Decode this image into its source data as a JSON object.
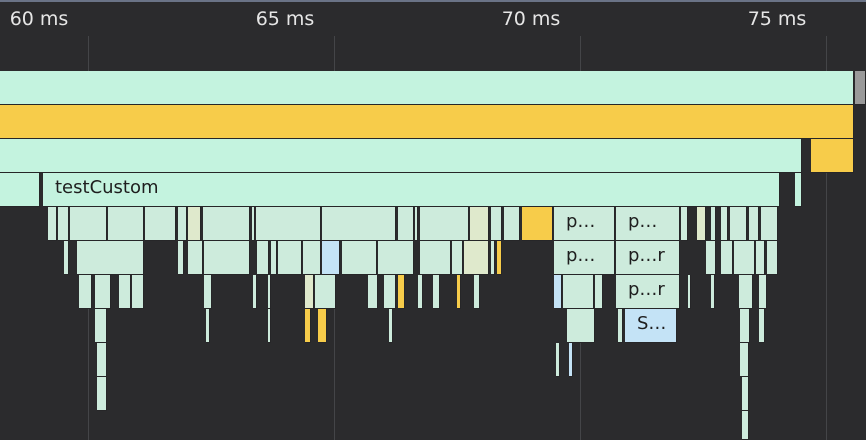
{
  "timeline": {
    "ticks": [
      {
        "label": "60 ms",
        "ms": 60
      },
      {
        "label": "65 ms",
        "ms": 65
      },
      {
        "label": "70 ms",
        "ms": 70
      },
      {
        "label": "75 ms",
        "ms": 75
      }
    ],
    "visible_range_ms": [
      59.1,
      76.8
    ]
  },
  "colors": {
    "background": "#2b2b2d",
    "mint": "#c4f3df",
    "mint_alt": "#cdebdc",
    "yellow": "#f7cc4a",
    "blue": "#c4e3f6",
    "pale": "#dfe9cc",
    "gray": "#9a9a9a",
    "tick_text": "#e6e6e6"
  },
  "frames": [
    {
      "row": 0,
      "start": 59.1,
      "end": 76.56,
      "color": "mint"
    },
    {
      "row": 0,
      "start": 76.58,
      "end": 76.8,
      "color": "gray"
    },
    {
      "row": 1,
      "start": 59.1,
      "end": 76.56,
      "color": "yellow"
    },
    {
      "row": 2,
      "start": 59.1,
      "end": 75.51,
      "color": "mint"
    },
    {
      "row": 2,
      "start": 75.69,
      "end": 76.56,
      "color": "yellow"
    },
    {
      "row": 3,
      "start": 59.1,
      "end": 60.03,
      "color": "mint"
    },
    {
      "row": 3,
      "start": 60.09,
      "end": 75.06,
      "color": "mint",
      "label": "testCustom"
    },
    {
      "row": 3,
      "start": 75.36,
      "end": 75.51,
      "color": "mint"
    },
    {
      "row": 4,
      "start": 60.18,
      "end": 60.36,
      "color": "mint2"
    },
    {
      "row": 4,
      "start": 60.39,
      "end": 60.6,
      "color": "mint2"
    },
    {
      "row": 4,
      "start": 60.63,
      "end": 61.38,
      "color": "mint2"
    },
    {
      "row": 4,
      "start": 61.41,
      "end": 62.13,
      "color": "mint2"
    },
    {
      "row": 4,
      "start": 62.16,
      "end": 62.79,
      "color": "mint2"
    },
    {
      "row": 4,
      "start": 62.82,
      "end": 63.0,
      "color": "mint2"
    },
    {
      "row": 4,
      "start": 63.03,
      "end": 63.3,
      "color": "pale"
    },
    {
      "row": 4,
      "start": 63.33,
      "end": 64.29,
      "color": "mint2"
    },
    {
      "row": 4,
      "start": 64.32,
      "end": 64.38,
      "color": "mint2"
    },
    {
      "row": 4,
      "start": 64.41,
      "end": 65.73,
      "color": "mint2"
    },
    {
      "row": 4,
      "start": 65.76,
      "end": 67.26,
      "color": "mint2"
    },
    {
      "row": 4,
      "start": 67.29,
      "end": 67.62,
      "color": "mint2"
    },
    {
      "row": 4,
      "start": 67.65,
      "end": 67.71,
      "color": "mint2"
    },
    {
      "row": 4,
      "start": 67.74,
      "end": 68.73,
      "color": "mint2"
    },
    {
      "row": 4,
      "start": 68.76,
      "end": 69.15,
      "color": "pale"
    },
    {
      "row": 4,
      "start": 69.18,
      "end": 69.42,
      "color": "mint2"
    },
    {
      "row": 4,
      "start": 69.45,
      "end": 69.78,
      "color": "mint2"
    },
    {
      "row": 4,
      "start": 69.81,
      "end": 70.44,
      "color": "yellow"
    },
    {
      "row": 4,
      "start": 70.47,
      "end": 71.7,
      "color": "mint2",
      "label": "p…"
    },
    {
      "row": 4,
      "start": 71.73,
      "end": 73.02,
      "color": "mint2",
      "label": "p…"
    },
    {
      "row": 4,
      "start": 73.05,
      "end": 73.2,
      "color": "mint2"
    },
    {
      "row": 4,
      "start": 73.38,
      "end": 73.56,
      "color": "pale"
    },
    {
      "row": 4,
      "start": 73.65,
      "end": 73.77,
      "color": "mint2"
    },
    {
      "row": 4,
      "start": 73.86,
      "end": 74.01,
      "color": "mint2"
    },
    {
      "row": 4,
      "start": 74.04,
      "end": 74.4,
      "color": "mint2"
    },
    {
      "row": 4,
      "start": 74.43,
      "end": 74.64,
      "color": "mint2"
    },
    {
      "row": 4,
      "start": 74.67,
      "end": 75.03,
      "color": "mint2"
    },
    {
      "row": 5,
      "start": 60.51,
      "end": 60.6,
      "color": "mint2"
    },
    {
      "row": 5,
      "start": 60.78,
      "end": 62.13,
      "color": "mint2"
    },
    {
      "row": 5,
      "start": 62.82,
      "end": 62.94,
      "color": "mint2"
    },
    {
      "row": 5,
      "start": 63.03,
      "end": 63.33,
      "color": "mint2"
    },
    {
      "row": 5,
      "start": 63.36,
      "end": 64.29,
      "color": "mint2"
    },
    {
      "row": 5,
      "start": 64.44,
      "end": 64.68,
      "color": "mint2"
    },
    {
      "row": 5,
      "start": 64.71,
      "end": 64.83,
      "color": "mint2"
    },
    {
      "row": 5,
      "start": 64.86,
      "end": 65.34,
      "color": "mint2"
    },
    {
      "row": 5,
      "start": 65.37,
      "end": 65.73,
      "color": "mint2"
    },
    {
      "row": 5,
      "start": 65.76,
      "end": 66.12,
      "color": "blue"
    },
    {
      "row": 5,
      "start": 66.15,
      "end": 66.87,
      "color": "mint2"
    },
    {
      "row": 5,
      "start": 66.9,
      "end": 67.62,
      "color": "mint2"
    },
    {
      "row": 5,
      "start": 67.74,
      "end": 68.37,
      "color": "mint2"
    },
    {
      "row": 5,
      "start": 68.4,
      "end": 68.61,
      "color": "mint2"
    },
    {
      "row": 5,
      "start": 68.64,
      "end": 69.15,
      "color": "pale"
    },
    {
      "row": 5,
      "start": 69.18,
      "end": 69.27,
      "color": "mint2"
    },
    {
      "row": 5,
      "start": 69.3,
      "end": 69.42,
      "color": "yellow"
    },
    {
      "row": 5,
      "start": 70.47,
      "end": 71.7,
      "color": "mint2",
      "label": "p…"
    },
    {
      "row": 5,
      "start": 71.73,
      "end": 73.02,
      "color": "mint2",
      "label": "p…r"
    },
    {
      "row": 5,
      "start": 73.56,
      "end": 73.77,
      "color": "mint2"
    },
    {
      "row": 5,
      "start": 73.86,
      "end": 74.1,
      "color": "mint2"
    },
    {
      "row": 5,
      "start": 74.13,
      "end": 74.55,
      "color": "mint2"
    },
    {
      "row": 5,
      "start": 74.58,
      "end": 74.76,
      "color": "mint2"
    },
    {
      "row": 5,
      "start": 74.79,
      "end": 75.03,
      "color": "mint2"
    },
    {
      "row": 6,
      "start": 60.81,
      "end": 61.08,
      "color": "mint2"
    },
    {
      "row": 6,
      "start": 61.14,
      "end": 61.47,
      "color": "mint2"
    },
    {
      "row": 6,
      "start": 61.62,
      "end": 61.86,
      "color": "mint2"
    },
    {
      "row": 6,
      "start": 61.89,
      "end": 62.13,
      "color": "mint2"
    },
    {
      "row": 6,
      "start": 63.36,
      "end": 63.51,
      "color": "mint2"
    },
    {
      "row": 6,
      "start": 64.35,
      "end": 64.44,
      "color": "mint2"
    },
    {
      "row": 6,
      "start": 64.65,
      "end": 64.71,
      "color": "mint2"
    },
    {
      "row": 6,
      "start": 65.4,
      "end": 65.58,
      "color": "pale"
    },
    {
      "row": 6,
      "start": 65.61,
      "end": 66.03,
      "color": "mint2"
    },
    {
      "row": 6,
      "start": 66.69,
      "end": 66.9,
      "color": "mint2"
    },
    {
      "row": 6,
      "start": 67.02,
      "end": 67.26,
      "color": "mint2"
    },
    {
      "row": 6,
      "start": 67.29,
      "end": 67.44,
      "color": "yellow"
    },
    {
      "row": 6,
      "start": 67.71,
      "end": 67.8,
      "color": "mint2"
    },
    {
      "row": 6,
      "start": 68.01,
      "end": 68.16,
      "color": "mint2"
    },
    {
      "row": 6,
      "start": 68.49,
      "end": 68.58,
      "color": "yellow"
    },
    {
      "row": 6,
      "start": 68.85,
      "end": 68.97,
      "color": "mint2"
    },
    {
      "row": 6,
      "start": 70.47,
      "end": 70.62,
      "color": "blue"
    },
    {
      "row": 6,
      "start": 70.65,
      "end": 71.28,
      "color": "mint2"
    },
    {
      "row": 6,
      "start": 71.31,
      "end": 71.46,
      "color": "mint2"
    },
    {
      "row": 6,
      "start": 71.73,
      "end": 73.02,
      "color": "mint2",
      "label": "p…r"
    },
    {
      "row": 6,
      "start": 73.2,
      "end": 73.26,
      "color": "mint2"
    },
    {
      "row": 6,
      "start": 73.65,
      "end": 73.74,
      "color": "mint2"
    },
    {
      "row": 6,
      "start": 74.22,
      "end": 74.52,
      "color": "mint2"
    },
    {
      "row": 6,
      "start": 74.64,
      "end": 74.79,
      "color": "mint2"
    },
    {
      "row": 7,
      "start": 61.14,
      "end": 61.38,
      "color": "mint2"
    },
    {
      "row": 7,
      "start": 63.39,
      "end": 63.48,
      "color": "mint2"
    },
    {
      "row": 7,
      "start": 64.65,
      "end": 64.71,
      "color": "mint2"
    },
    {
      "row": 7,
      "start": 65.4,
      "end": 65.52,
      "color": "yellow"
    },
    {
      "row": 7,
      "start": 65.67,
      "end": 65.85,
      "color": "yellow"
    },
    {
      "row": 7,
      "start": 67.11,
      "end": 67.2,
      "color": "mint2"
    },
    {
      "row": 7,
      "start": 70.74,
      "end": 71.31,
      "color": "mint2"
    },
    {
      "row": 7,
      "start": 71.76,
      "end": 71.88,
      "color": "mint2"
    },
    {
      "row": 7,
      "start": 71.91,
      "end": 72.96,
      "color": "blue",
      "label": "S…"
    },
    {
      "row": 7,
      "start": 74.25,
      "end": 74.46,
      "color": "mint2"
    },
    {
      "row": 7,
      "start": 74.64,
      "end": 74.76,
      "color": "mint2"
    },
    {
      "row": 8,
      "start": 61.17,
      "end": 61.38,
      "color": "mint2"
    },
    {
      "row": 8,
      "start": 70.5,
      "end": 70.59,
      "color": "mint2"
    },
    {
      "row": 8,
      "start": 70.77,
      "end": 70.86,
      "color": "blue"
    },
    {
      "row": 8,
      "start": 74.25,
      "end": 74.43,
      "color": "mint2"
    },
    {
      "row": 9,
      "start": 61.17,
      "end": 61.38,
      "color": "mint2"
    },
    {
      "row": 9,
      "start": 74.28,
      "end": 74.43,
      "color": "mint2"
    },
    {
      "row": 10,
      "start": 74.28,
      "end": 74.43,
      "color": "mint2"
    }
  ]
}
